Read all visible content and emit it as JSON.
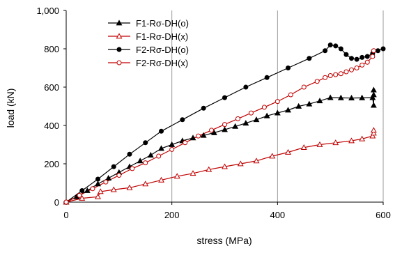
{
  "chart_data": {
    "type": "line",
    "xlabel": "stress (MPa)",
    "ylabel": "load (kN)",
    "xlim": [
      0,
      600
    ],
    "ylim": [
      0,
      1000
    ],
    "x_ticks": [
      0,
      200,
      400,
      600
    ],
    "y_ticks": [
      0,
      200,
      400,
      600,
      800,
      1000
    ],
    "x_tick_labels": [
      "0",
      "200",
      "400",
      "600"
    ],
    "y_tick_labels": [
      "0",
      "200",
      "400",
      "600",
      "800",
      "1,000"
    ],
    "grid": "vertical",
    "legend_placement": "top-left",
    "series": [
      {
        "name": "F1-Rσ-DH(o)",
        "color": "#000000",
        "marker": "triangle-filled",
        "x": [
          0,
          20,
          40,
          60,
          80,
          100,
          120,
          140,
          160,
          180,
          200,
          220,
          240,
          260,
          280,
          300,
          320,
          340,
          360,
          380,
          400,
          420,
          440,
          460,
          480,
          500,
          520,
          540,
          560,
          580,
          582,
          582,
          582
        ],
        "y": [
          0,
          28,
          60,
          95,
          125,
          155,
          185,
          215,
          245,
          280,
          300,
          320,
          335,
          348,
          362,
          378,
          395,
          412,
          430,
          450,
          465,
          480,
          500,
          512,
          528,
          545,
          544,
          543,
          544,
          545,
          505,
          560,
          585
        ]
      },
      {
        "name": "F1-Rσ-DH(x)",
        "color": "#c00000",
        "marker": "triangle-open",
        "x": [
          0,
          30,
          60,
          65,
          90,
          120,
          150,
          180,
          210,
          240,
          270,
          300,
          330,
          360,
          390,
          420,
          450,
          480,
          510,
          540,
          560,
          580,
          582,
          582
        ],
        "y": [
          0,
          20,
          28,
          55,
          65,
          75,
          95,
          115,
          135,
          150,
          170,
          185,
          200,
          215,
          240,
          260,
          285,
          300,
          310,
          320,
          330,
          345,
          360,
          375
        ]
      },
      {
        "name": "F2-Rσ-DH(o)",
        "color": "#000000",
        "marker": "circle-filled",
        "x": [
          0,
          30,
          60,
          90,
          120,
          150,
          180,
          220,
          260,
          300,
          340,
          380,
          420,
          460,
          490,
          500,
          510,
          520,
          530,
          540,
          550,
          560,
          570,
          580,
          590,
          600
        ],
        "y": [
          0,
          60,
          120,
          185,
          250,
          310,
          370,
          430,
          490,
          545,
          600,
          650,
          700,
          750,
          790,
          820,
          815,
          800,
          770,
          750,
          745,
          755,
          760,
          775,
          790,
          800
        ]
      },
      {
        "name": "F2-Rσ-DH(x)",
        "color": "#c00000",
        "marker": "circle-open",
        "x": [
          0,
          25,
          50,
          75,
          100,
          125,
          150,
          175,
          200,
          225,
          250,
          275,
          300,
          325,
          350,
          375,
          400,
          425,
          450,
          475,
          490,
          500,
          510,
          520,
          530,
          540,
          550,
          560,
          570,
          580,
          582
        ],
        "y": [
          0,
          35,
          70,
          105,
          140,
          175,
          205,
          240,
          275,
          310,
          345,
          375,
          405,
          435,
          465,
          495,
          525,
          560,
          600,
          630,
          650,
          660,
          665,
          670,
          680,
          690,
          700,
          715,
          730,
          760,
          790
        ]
      }
    ]
  }
}
